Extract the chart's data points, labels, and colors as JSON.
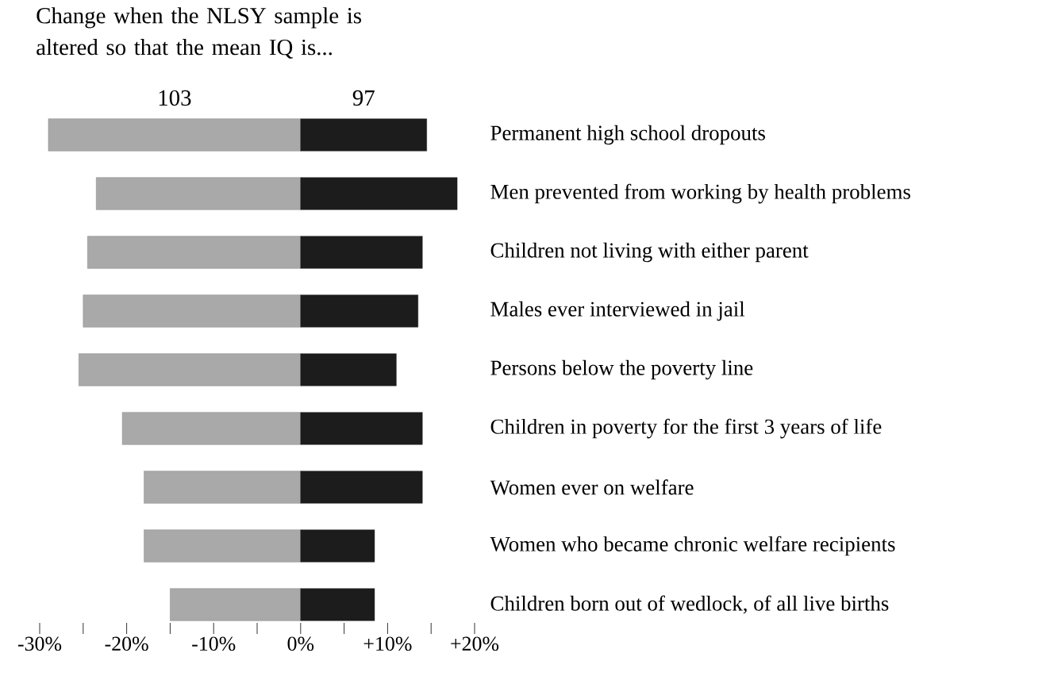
{
  "chart_data": {
    "type": "bar",
    "orientation": "horizontal",
    "title": "Change when the NLSY sample is altered so that the mean IQ is...",
    "categories": [
      "Permanent high school dropouts",
      "Men prevented from working by health problems",
      "Children not living with either parent",
      "Males ever interviewed in jail",
      "Persons below the poverty line",
      "Children in poverty for the first 3 years of life",
      "Women ever on welfare",
      "Women who became chronic welfare recipients",
      "Children born out of wedlock, of all live births"
    ],
    "series": [
      {
        "name": "103",
        "color": "#a9a9a9",
        "values": [
          -29,
          -23.5,
          -24.5,
          -25,
          -25.5,
          -20.5,
          -18,
          -18,
          -15
        ]
      },
      {
        "name": "97",
        "color": "#1c1c1c",
        "values": [
          14.5,
          18,
          14,
          13.5,
          11,
          14,
          14,
          8.5,
          8.5
        ]
      }
    ],
    "xlim": [
      -30,
      20
    ],
    "stacked": true,
    "xticks": [
      {
        "value": -30,
        "label": "-30%"
      },
      {
        "value": -25,
        "label": null
      },
      {
        "value": -20,
        "label": "-20%"
      },
      {
        "value": -15,
        "label": null
      },
      {
        "value": -10,
        "label": "-10%"
      },
      {
        "value": -5,
        "label": null
      },
      {
        "value": 0,
        "label": "0%"
      },
      {
        "value": 5,
        "label": null
      },
      {
        "value": 10,
        "label": "+10%"
      },
      {
        "value": 15,
        "label": null
      },
      {
        "value": 20,
        "label": "+20%"
      }
    ],
    "grid": false
  }
}
